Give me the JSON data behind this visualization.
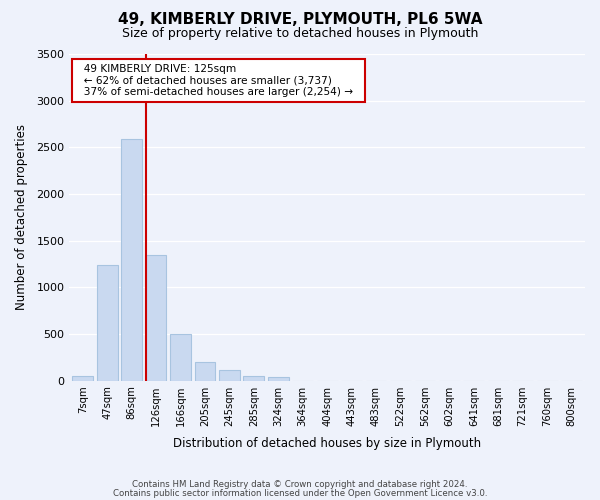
{
  "title": "49, KIMBERLY DRIVE, PLYMOUTH, PL6 5WA",
  "subtitle": "Size of property relative to detached houses in Plymouth",
  "xlabel": "Distribution of detached houses by size in Plymouth",
  "ylabel": "Number of detached properties",
  "bar_color": "#c9d9f0",
  "bar_edge_color": "#a8c4e0",
  "bins": [
    "7sqm",
    "47sqm",
    "86sqm",
    "126sqm",
    "166sqm",
    "205sqm",
    "245sqm",
    "285sqm",
    "324sqm",
    "364sqm",
    "404sqm",
    "443sqm",
    "483sqm",
    "522sqm",
    "562sqm",
    "602sqm",
    "641sqm",
    "681sqm",
    "721sqm",
    "760sqm",
    "800sqm"
  ],
  "values": [
    50,
    1240,
    2590,
    1350,
    500,
    200,
    110,
    50,
    40,
    0,
    0,
    0,
    0,
    0,
    0,
    0,
    0,
    0,
    0,
    0,
    0
  ],
  "ylim": [
    0,
    3500
  ],
  "yticks": [
    0,
    500,
    1000,
    1500,
    2000,
    2500,
    3000,
    3500
  ],
  "property_line_label": "126sqm",
  "property_line_color": "#cc0000",
  "annotation_title": "49 KIMBERLY DRIVE: 125sqm",
  "annotation_line1": "← 62% of detached houses are smaller (3,737)",
  "annotation_line2": "37% of semi-detached houses are larger (2,254) →",
  "annotation_box_facecolor": "#ffffff",
  "annotation_box_edgecolor": "#cc0000",
  "footer_line1": "Contains HM Land Registry data © Crown copyright and database right 2024.",
  "footer_line2": "Contains public sector information licensed under the Open Government Licence v3.0.",
  "background_color": "#eef2fb"
}
